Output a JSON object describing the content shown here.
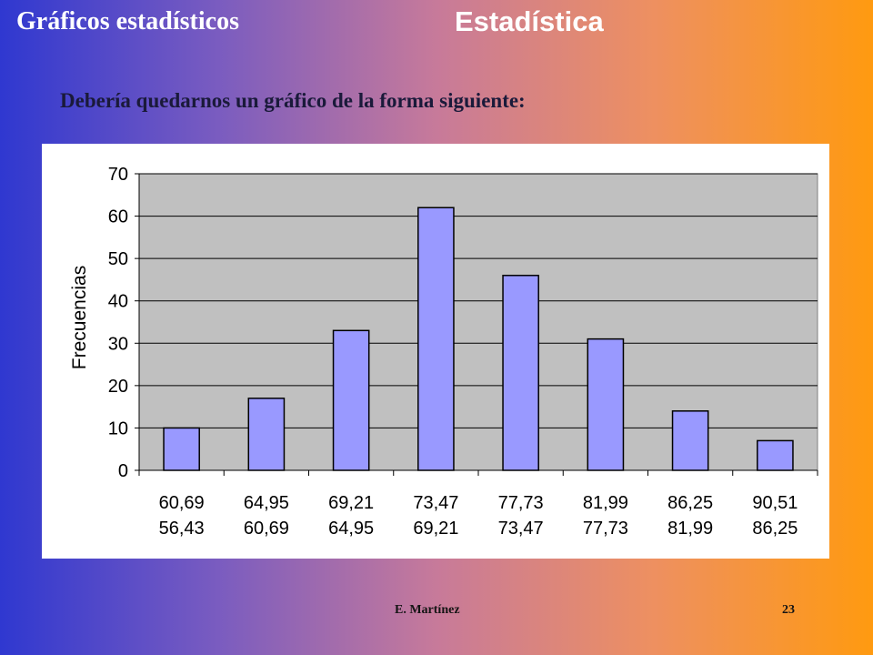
{
  "slide": {
    "section_title": "Gráficos estadísticos",
    "topic_title": "Estadística",
    "subtitle": "Debería quedarnos un gráfico de la forma siguiente:",
    "author": "E. Martínez",
    "page_number": "23"
  },
  "colors": {
    "plot_background": "#c0c0c0",
    "bar_fill": "#9999ff",
    "bar_stroke": "#000000",
    "text": "#000000"
  },
  "chart_data": {
    "type": "bar",
    "title": "",
    "xlabel": "",
    "ylabel": "Frecuencias",
    "categories": [
      [
        "60,69",
        "56,43"
      ],
      [
        "64,95",
        "60,69"
      ],
      [
        "69,21",
        "64,95"
      ],
      [
        "73,47",
        "69,21"
      ],
      [
        "77,73",
        "73,47"
      ],
      [
        "81,99",
        "77,73"
      ],
      [
        "86,25",
        "81,99"
      ],
      [
        "90,51",
        "86,25"
      ]
    ],
    "values": [
      10,
      17,
      33,
      62,
      46,
      31,
      14,
      7
    ],
    "ylim": [
      0,
      70
    ],
    "yticks": [
      0,
      10,
      20,
      30,
      40,
      50,
      60,
      70
    ],
    "grid": true,
    "legend": "none"
  }
}
